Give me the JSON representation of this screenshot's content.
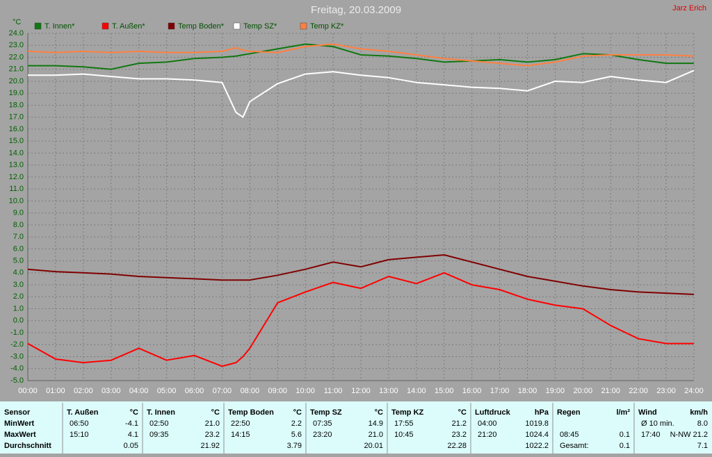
{
  "chart_data": {
    "type": "line",
    "title": "Freitag, 20.03.2009",
    "author": "Jarz Erich",
    "y_label": "°C",
    "x": [
      0,
      1,
      2,
      3,
      4,
      5,
      6,
      7,
      7.5,
      7.75,
      8,
      9,
      10,
      11,
      12,
      13,
      14,
      15,
      16,
      17,
      18,
      19,
      20,
      21,
      22,
      23,
      24
    ],
    "xlim": [
      0,
      24
    ],
    "xticks": [
      {
        "value": 0,
        "label": "00:00"
      },
      {
        "value": 1,
        "label": "01:00"
      },
      {
        "value": 2,
        "label": "02:00"
      },
      {
        "value": 3,
        "label": "03:00"
      },
      {
        "value": 4,
        "label": "04:00"
      },
      {
        "value": 5,
        "label": "05:00"
      },
      {
        "value": 6,
        "label": "06:00"
      },
      {
        "value": 7,
        "label": "07:00"
      },
      {
        "value": 8,
        "label": "08:00"
      },
      {
        "value": 9,
        "label": "09:00"
      },
      {
        "value": 10,
        "label": "10:00"
      },
      {
        "value": 11,
        "label": "11:00"
      },
      {
        "value": 12,
        "label": "12:00"
      },
      {
        "value": 13,
        "label": "13:00"
      },
      {
        "value": 14,
        "label": "14:00"
      },
      {
        "value": 15,
        "label": "15:00"
      },
      {
        "value": 16,
        "label": "16:00"
      },
      {
        "value": 17,
        "label": "17:00"
      },
      {
        "value": 18,
        "label": "18:00"
      },
      {
        "value": 19,
        "label": "19:00"
      },
      {
        "value": 20,
        "label": "20:00"
      },
      {
        "value": 21,
        "label": "21:00"
      },
      {
        "value": 22,
        "label": "22:00"
      },
      {
        "value": 23,
        "label": "23:00"
      },
      {
        "value": 24,
        "label": "24:00"
      }
    ],
    "ylim": [
      -5,
      24
    ],
    "yticks": [
      {
        "value": 24,
        "label": "24.0"
      },
      {
        "value": 23,
        "label": "23.0"
      },
      {
        "value": 22,
        "label": "22.0"
      },
      {
        "value": 21,
        "label": "21.0"
      },
      {
        "value": 20,
        "label": "20.0"
      },
      {
        "value": 19,
        "label": "19.0"
      },
      {
        "value": 18,
        "label": "18.0"
      },
      {
        "value": 17,
        "label": "17.0"
      },
      {
        "value": 16,
        "label": "16.0"
      },
      {
        "value": 15,
        "label": "15.0"
      },
      {
        "value": 14,
        "label": "14.0"
      },
      {
        "value": 13,
        "label": "13.0"
      },
      {
        "value": 12,
        "label": "12.0"
      },
      {
        "value": 11,
        "label": "11.0"
      },
      {
        "value": 10,
        "label": "10.0"
      },
      {
        "value": 9,
        "label": "9.0"
      },
      {
        "value": 8,
        "label": "8.0"
      },
      {
        "value": 7,
        "label": "7.0"
      },
      {
        "value": 6,
        "label": "6.0"
      },
      {
        "value": 5,
        "label": "5.0"
      },
      {
        "value": 4,
        "label": "4.0"
      },
      {
        "value": 3,
        "label": "3.0"
      },
      {
        "value": 2,
        "label": "2.0"
      },
      {
        "value": 1,
        "label": "1.0"
      },
      {
        "value": 0,
        "label": "0.0"
      },
      {
        "value": -1,
        "label": "-1.0"
      },
      {
        "value": -2,
        "label": "-2.0"
      },
      {
        "value": -3,
        "label": "-3.0"
      },
      {
        "value": -4,
        "label": "-4.0"
      },
      {
        "value": -5,
        "label": "-5.0"
      }
    ],
    "grid": true,
    "series": [
      {
        "name": "T. Innen*",
        "color": "#107810",
        "values": [
          21.3,
          21.3,
          21.2,
          21.0,
          21.5,
          21.6,
          21.9,
          22.0,
          22.1,
          22.2,
          22.3,
          22.7,
          23.1,
          22.9,
          22.2,
          22.1,
          21.9,
          21.6,
          21.7,
          21.8,
          21.6,
          21.8,
          22.3,
          22.2,
          21.8,
          21.5,
          21.5
        ]
      },
      {
        "name": "T. Außen*",
        "color": "#ff0000",
        "values": [
          -1.9,
          -3.2,
          -3.5,
          -3.3,
          -2.3,
          -3.3,
          -2.9,
          -3.8,
          -3.5,
          -3.0,
          -2.3,
          1.5,
          2.4,
          3.2,
          2.7,
          3.7,
          3.1,
          4.0,
          3.0,
          2.6,
          1.8,
          1.3,
          1.0,
          -0.4,
          -1.5,
          -1.9,
          -1.9
        ]
      },
      {
        "name": "Temp Boden*",
        "color": "#800000",
        "values": [
          4.3,
          4.1,
          4.0,
          3.9,
          3.7,
          3.6,
          3.5,
          3.4,
          3.4,
          3.4,
          3.4,
          3.8,
          4.3,
          4.9,
          4.5,
          5.1,
          5.3,
          5.5,
          4.9,
          4.3,
          3.7,
          3.3,
          2.9,
          2.6,
          2.4,
          2.3,
          2.2
        ]
      },
      {
        "name": "Temp SZ*",
        "color": "#ffffff",
        "values": [
          20.5,
          20.5,
          20.6,
          20.4,
          20.2,
          20.2,
          20.1,
          19.9,
          17.4,
          17.0,
          18.3,
          19.8,
          20.6,
          20.8,
          20.5,
          20.3,
          19.9,
          19.7,
          19.5,
          19.4,
          19.2,
          20.0,
          19.9,
          20.4,
          20.1,
          19.9,
          20.9
        ]
      },
      {
        "name": "Temp KZ*",
        "color": "#ff8040",
        "values": [
          22.5,
          22.4,
          22.5,
          22.4,
          22.5,
          22.4,
          22.4,
          22.5,
          22.8,
          22.6,
          22.5,
          22.4,
          22.9,
          23.1,
          22.7,
          22.5,
          22.2,
          21.9,
          21.7,
          21.5,
          21.3,
          21.6,
          22.1,
          22.2,
          22.2,
          22.2,
          22.1
        ]
      }
    ]
  },
  "table": {
    "row_labels": [
      "Sensor",
      "MinWert",
      "MaxWert",
      "Durchschnitt"
    ],
    "columns": [
      {
        "header": "T. Außen",
        "unit": "°C",
        "rows": [
          {
            "time": "06:50",
            "value": "-4.1"
          },
          {
            "time": "15:10",
            "value": "4.1"
          },
          {
            "value": "0.05"
          }
        ]
      },
      {
        "header": "T. Innen",
        "unit": "°C",
        "rows": [
          {
            "time": "02:50",
            "value": "21.0"
          },
          {
            "time": "09:35",
            "value": "23.2"
          },
          {
            "value": "21.92"
          }
        ]
      },
      {
        "header": "Temp Boden",
        "unit": "°C",
        "rows": [
          {
            "time": "22:50",
            "value": "2.2"
          },
          {
            "time": "14:15",
            "value": "5.6"
          },
          {
            "value": "3.79"
          }
        ]
      },
      {
        "header": "Temp SZ",
        "unit": "°C",
        "rows": [
          {
            "time": "07:35",
            "value": "14.9"
          },
          {
            "time": "23:20",
            "value": "21.0"
          },
          {
            "value": "20.01"
          }
        ]
      },
      {
        "header": "Temp KZ",
        "unit": "°C",
        "rows": [
          {
            "time": "17:55",
            "value": "21.2"
          },
          {
            "time": "10:45",
            "value": "23.2"
          },
          {
            "value": "22.28"
          }
        ]
      },
      {
        "header": "Luftdruck",
        "unit": "hPa",
        "rows": [
          {
            "time": "04:00",
            "value": "1019.8"
          },
          {
            "time": "21:20",
            "value": "1024.4"
          },
          {
            "value": "1022.2"
          }
        ]
      },
      {
        "header": "Regen",
        "unit": "l/m²",
        "rows": [
          null,
          {
            "time": "08:45",
            "value": "0.1"
          },
          {
            "time": "Gesamt:",
            "value": "0.1"
          }
        ]
      },
      {
        "header": "Wind",
        "unit": "km/h",
        "rows": [
          {
            "time": "Ø 10 min.",
            "value": "8.0"
          },
          {
            "time": "17:40",
            "value": "N-NW 21.2"
          },
          {
            "value": "7.1"
          }
        ]
      }
    ]
  }
}
